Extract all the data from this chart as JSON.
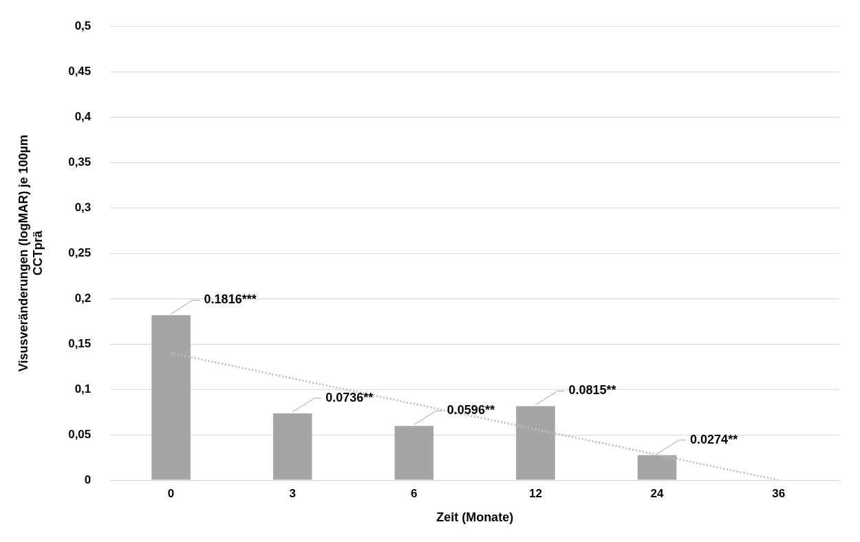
{
  "chart_data": {
    "type": "bar",
    "xlabel": "Zeit (Monate)",
    "ylabel": "Visusveränderungen (logMAR) je 100µm CCTprä",
    "categories": [
      "0",
      "3",
      "6",
      "12",
      "24",
      "36"
    ],
    "series": [
      {
        "color": "#a5a5a5",
        "values": [
          0.1816,
          0.0736,
          0.0596,
          0.0815,
          0.0274,
          null
        ],
        "value_labels": [
          "0.1816***",
          "0.0736**",
          "0.0596**",
          "0.0815**",
          "0.0274**",
          null
        ]
      },
      {
        "type": "line",
        "color": "#bfbfbf",
        "x": [
          "0",
          "36"
        ],
        "values": [
          0.14,
          0.0
        ],
        "line_style": "dotted",
        "marker": "none"
      }
    ],
    "ylim": [
      0,
      0.5
    ],
    "yticks": [
      0,
      {
        "value": 0.05,
        "label": "0,05"
      },
      {
        "value": 0.1,
        "label": "0,1"
      },
      {
        "value": 0.15,
        "label": "0,15"
      },
      {
        "value": 0.2,
        "label": "0,2"
      },
      {
        "value": 0.25,
        "label": "0,25"
      },
      {
        "value": 0.3,
        "label": "0,3"
      },
      {
        "value": 0.35,
        "label": "0,35"
      },
      {
        "value": 0.4,
        "label": "0,4"
      },
      {
        "value": 0.45,
        "label": "0,45"
      },
      {
        "value": 0.5,
        "label": "0,5"
      }
    ],
    "grid": "y",
    "legend": false
  }
}
